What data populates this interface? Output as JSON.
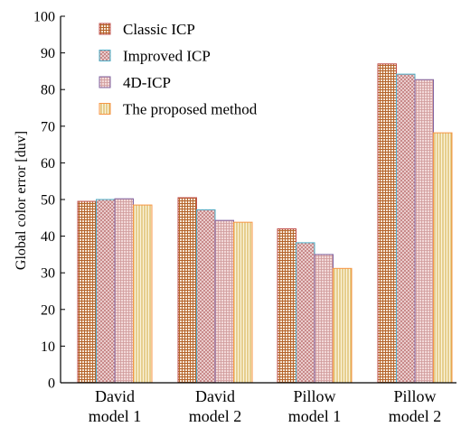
{
  "chart_data": {
    "type": "bar",
    "title": "",
    "xlabel": "",
    "ylabel": "Global color error [duv]",
    "ylim": [
      0,
      100
    ],
    "yticks": [
      0,
      10,
      20,
      30,
      40,
      50,
      60,
      70,
      80,
      90,
      100
    ],
    "categories": [
      [
        "David",
        "model 1"
      ],
      [
        "David",
        "model 2"
      ],
      [
        "Pillow",
        "model 1"
      ],
      [
        "Pillow",
        "model 2"
      ]
    ],
    "series": [
      {
        "name": "Classic ICP",
        "values": [
          49.5,
          50.5,
          42.0,
          87.0
        ],
        "pattern": "grid",
        "color": "#c0504d"
      },
      {
        "name": "Improved ICP",
        "values": [
          50.0,
          47.2,
          38.2,
          84.2
        ],
        "pattern": "crosshatch",
        "color": "#4bacc6"
      },
      {
        "name": "4D-ICP",
        "values": [
          50.2,
          44.3,
          35.0,
          82.7
        ],
        "pattern": "dense",
        "color": "#8064a2"
      },
      {
        "name": "The proposed method",
        "values": [
          48.5,
          43.8,
          31.2,
          68.2
        ],
        "pattern": "vlines",
        "color": "#f79646"
      }
    ],
    "grid": false,
    "legend_position": "top-left"
  }
}
